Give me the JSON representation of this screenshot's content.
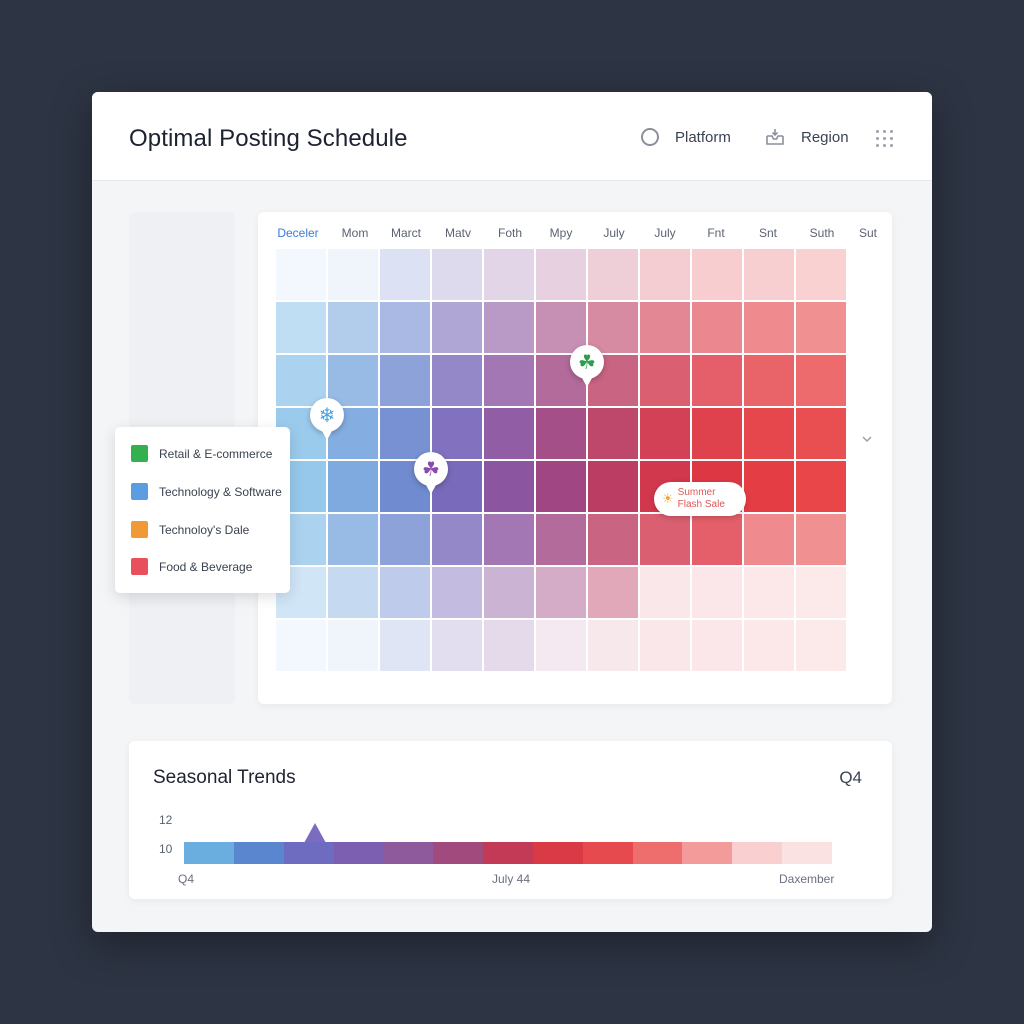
{
  "header": {
    "title": "Optimal Posting Schedule",
    "platform_label": "Platform",
    "region_label": "Region"
  },
  "heatmap": {
    "months": [
      "Deceler",
      "Mom",
      "Marct",
      "Matv",
      "Foth",
      "Mpy",
      "July",
      "July",
      "Fnt",
      "Snt",
      "Suth",
      "Sut"
    ],
    "active_month_index": 0,
    "markers": [
      {
        "icon": "snowflake-icon",
        "glyph": "❄",
        "color": "#4aa3e0"
      },
      {
        "icon": "clover-icon",
        "glyph": "☘",
        "color": "#8a4bb0"
      },
      {
        "icon": "clover-icon",
        "glyph": "☘",
        "color": "#2f9e4f"
      }
    ],
    "callout": {
      "line1": "Summer",
      "line2": "Flash Sale",
      "icon": "sun-icon"
    }
  },
  "legend": [
    {
      "label": "Retail & E-commerce",
      "color": "#33b04f"
    },
    {
      "label": "Technology & Software",
      "color": "#5b9ee0"
    },
    {
      "label": "Technoloy's Dale",
      "color": "#f19a35"
    },
    {
      "label": "Food & Beverage",
      "color": "#e8505b"
    }
  ],
  "trends": {
    "title": "Seasonal Trends",
    "quarter": "Q4",
    "y_ticks": [
      "12",
      "10"
    ],
    "x_labels": [
      "Q4",
      "July 44",
      "Daxember"
    ],
    "segments": [
      "#6aaee0",
      "#5a86cf",
      "#6d6cc0",
      "#7c5fb0",
      "#8e5a9c",
      "#a04a7e",
      "#c23a55",
      "#d93a46",
      "#e64a4e",
      "#ee6e6e",
      "#f39b9b",
      "#f9cfcf",
      "#fbe2e2"
    ]
  }
}
